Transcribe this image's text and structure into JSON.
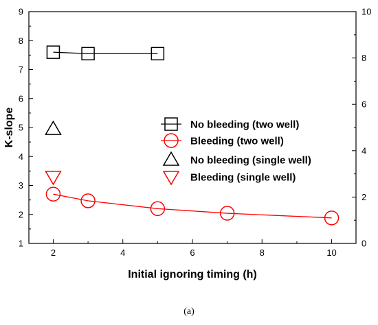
{
  "chart_data": {
    "type": "scatter",
    "xlabel": "Initial ignoring timing (h)",
    "ylabel": "K-slope",
    "xlim": [
      1.3,
      10.7
    ],
    "ylim": [
      1,
      9
    ],
    "y2lim": [
      0,
      10
    ],
    "xticks": [
      2,
      4,
      6,
      8,
      10
    ],
    "yticks": [
      1,
      2,
      3,
      4,
      5,
      6,
      7,
      8,
      9
    ],
    "y2ticks": [
      0,
      2,
      4,
      6,
      8,
      10
    ],
    "legend_position": "right",
    "series": [
      {
        "name": "No bleeding (two well)",
        "marker": "square",
        "color": "#000000",
        "line": true,
        "x": [
          2,
          3,
          5
        ],
        "y": [
          7.6,
          7.55,
          7.55
        ]
      },
      {
        "name": "Bleeding (two well)",
        "marker": "circle",
        "color": "#ff0000",
        "line": true,
        "x": [
          2,
          3,
          5,
          7,
          10
        ],
        "y": [
          2.7,
          2.47,
          2.2,
          2.04,
          1.88
        ]
      },
      {
        "name": "No bleeding (single well)",
        "marker": "triangle-up",
        "color": "#000000",
        "line": false,
        "x": [
          2
        ],
        "y": [
          4.95
        ]
      },
      {
        "name": "Bleeding (single well)",
        "marker": "triangle-down",
        "color": "#ff0000",
        "line": false,
        "x": [
          2
        ],
        "y": [
          3.3
        ]
      }
    ]
  },
  "caption": "(a)"
}
